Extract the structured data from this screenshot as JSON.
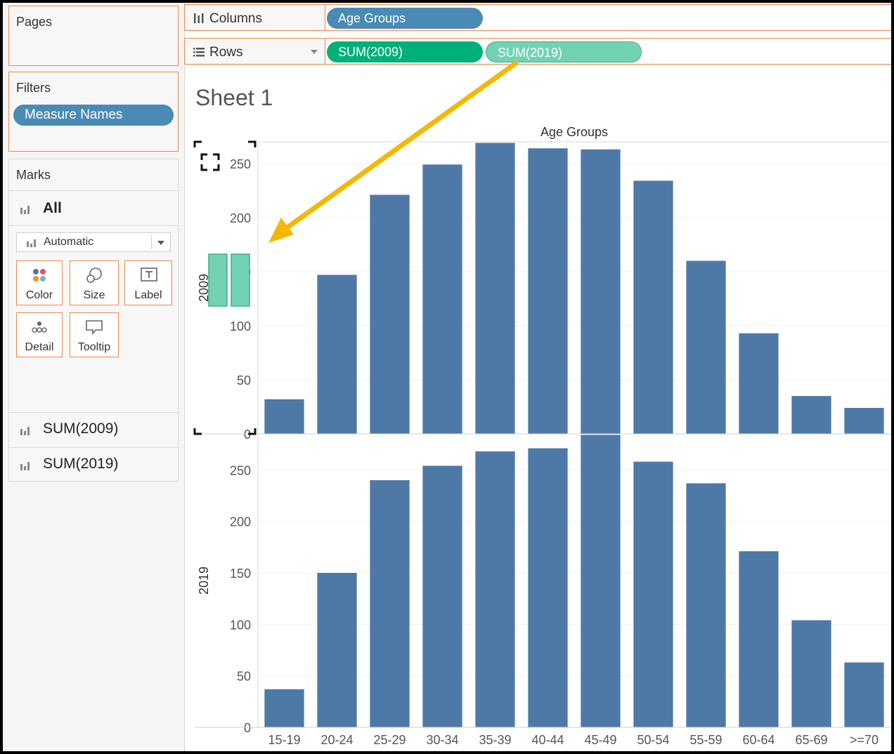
{
  "left_panel": {
    "pages_label": "Pages",
    "filters_label": "Filters",
    "filter_pill": "Measure Names",
    "marks_label": "Marks",
    "marks_all": "All",
    "mark_type": "Automatic",
    "mark_buttons": [
      {
        "label": "Color",
        "icon": "color-dots-icon"
      },
      {
        "label": "Size",
        "icon": "size-icon"
      },
      {
        "label": "Label",
        "icon": "label-icon"
      },
      {
        "label": "Detail",
        "icon": "detail-icon"
      },
      {
        "label": "Tooltip",
        "icon": "tooltip-icon"
      }
    ],
    "measure_cards": [
      "SUM(2009)",
      "SUM(2019)"
    ]
  },
  "shelves": {
    "columns_label": "Columns",
    "columns_pill": "Age Groups",
    "rows_label": "Rows",
    "rows_pills": [
      "SUM(2009)",
      "SUM(2019)"
    ]
  },
  "sheet": {
    "title": "Sheet 1"
  },
  "colors": {
    "bar": "#4e79a7",
    "pill_blue": "#4a8ab5",
    "pill_green": "#00b07a",
    "pill_lightgreen": "#73d2b4",
    "annotation_arrow": "#f5b800",
    "shelf_border": "#e9894f"
  },
  "chart_data": {
    "type": "bar",
    "xlabel": "Age Groups",
    "categories": [
      "15-19",
      "20-24",
      "25-29",
      "30-34",
      "35-39",
      "40-44",
      "45-49",
      "50-54",
      "55-59",
      "60-64",
      "65-69",
      ">=70"
    ],
    "series": [
      {
        "name": "2009",
        "values": [
          32,
          147,
          221,
          249,
          269,
          264,
          263,
          234,
          160,
          93,
          35,
          24
        ],
        "ylim": [
          0,
          270
        ],
        "yticks": [
          0,
          50,
          100,
          150,
          200,
          250
        ]
      },
      {
        "name": "2019",
        "values": [
          37,
          150,
          240,
          254,
          268,
          271,
          284,
          258,
          237,
          171,
          104,
          63
        ],
        "ylim": [
          0,
          285
        ],
        "yticks": [
          0,
          50,
          100,
          150,
          200,
          250
        ]
      }
    ],
    "grid": true
  }
}
